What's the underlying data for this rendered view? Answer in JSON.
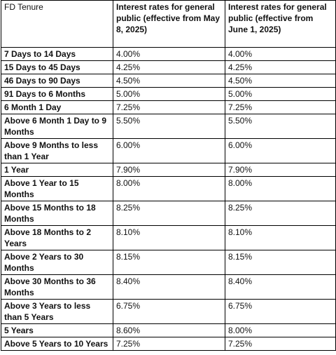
{
  "table": {
    "header": [
      "FD Tenure",
      "Interest rates for general public (effective from May 8, 2025)",
      "Interest rates for general public (effective from June 1, 2025)"
    ],
    "rows": [
      [
        "7 Days to 14 Days",
        "4.00%",
        "4.00%"
      ],
      [
        "15 Days to 45 Days",
        "4.25%",
        "4.25%"
      ],
      [
        "46 Days to 90 Days",
        "4.50%",
        "4.50%"
      ],
      [
        "91 Days to 6 Months",
        "5.00%",
        "5.00%"
      ],
      [
        "6 Month 1 Day",
        "7.25%",
        "7.25%"
      ],
      [
        "Above 6 Month 1 Day to 9 Months",
        "5.50%",
        "5.50%"
      ],
      [
        "Above 9 Months to less than 1 Year",
        "6.00%",
        "6.00%"
      ],
      [
        "1 Year",
        "7.90%",
        "7.90%"
      ],
      [
        "Above 1 Year to 15 Months",
        "8.00%",
        "8.00%"
      ],
      [
        "Above 15 Months to 18 Months",
        "8.25%",
        "8.25%"
      ],
      [
        "Above 18 Months to 2 Years",
        "8.10%",
        "8.10%"
      ],
      [
        "Above 2 Years to 30 Months",
        "8.15%",
        "8.15%"
      ],
      [
        "Above 30 Months to 36 Months",
        "8.40%",
        "8.40%"
      ],
      [
        "Above 3 Years to less than 5 Years",
        "6.75%",
        "6.75%"
      ],
      [
        "5 Years",
        "8.60%",
        "8.00%"
      ],
      [
        "Above 5 Years to 10 Years",
        "7.25%",
        "7.25%"
      ]
    ]
  }
}
